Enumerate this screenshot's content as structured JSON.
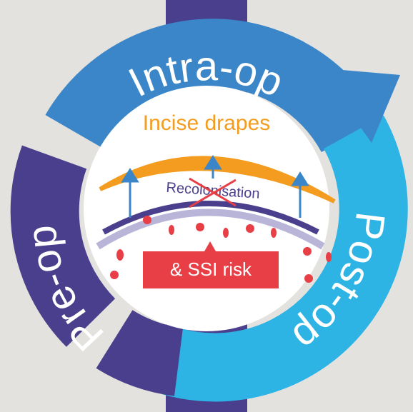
{
  "ring": {
    "top": "Intra-op",
    "right": "Post-op",
    "left": "Pre-op"
  },
  "center": {
    "title": "Incise drapes",
    "crossed": "Recolonisation",
    "risk": "& SSI risk"
  }
}
